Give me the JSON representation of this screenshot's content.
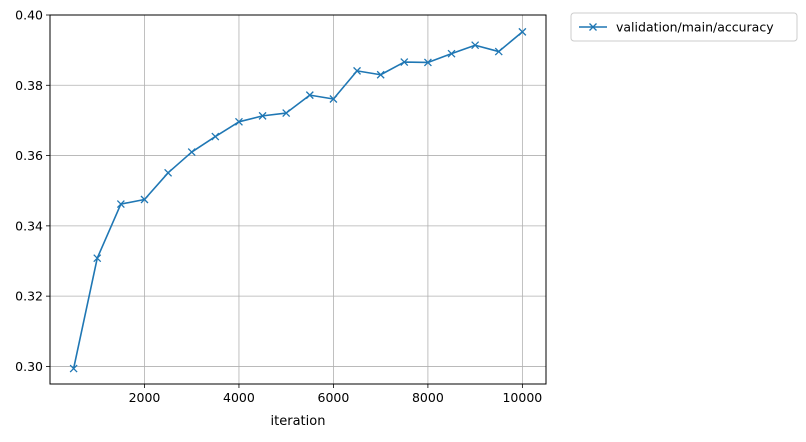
{
  "chart_data": {
    "type": "line",
    "title": "",
    "xlabel": "iteration",
    "ylabel": "",
    "xlim": [
      0,
      10500
    ],
    "ylim": [
      0.295,
      0.4
    ],
    "xticks": [
      2000,
      4000,
      6000,
      8000,
      10000
    ],
    "yticks": [
      0.3,
      0.32,
      0.34,
      0.36,
      0.38,
      0.4
    ],
    "ytick_labels": [
      "0.30",
      "0.32",
      "0.34",
      "0.36",
      "0.38",
      "0.40"
    ],
    "grid": true,
    "legend_position": "outside-upper-right",
    "series": [
      {
        "name": "validation/main/accuracy",
        "color": "#1f77b4",
        "marker": "x",
        "x": [
          500,
          1000,
          1500,
          2000,
          2500,
          3000,
          3500,
          4000,
          4500,
          5000,
          5500,
          6000,
          6500,
          7000,
          7500,
          8000,
          8500,
          9000,
          9500,
          10000
        ],
        "y": [
          0.2994,
          0.3308,
          0.3462,
          0.3475,
          0.3551,
          0.361,
          0.3654,
          0.3696,
          0.3713,
          0.3721,
          0.3772,
          0.3761,
          0.3841,
          0.383,
          0.3866,
          0.3865,
          0.389,
          0.3914,
          0.3896,
          0.3952
        ]
      }
    ]
  }
}
